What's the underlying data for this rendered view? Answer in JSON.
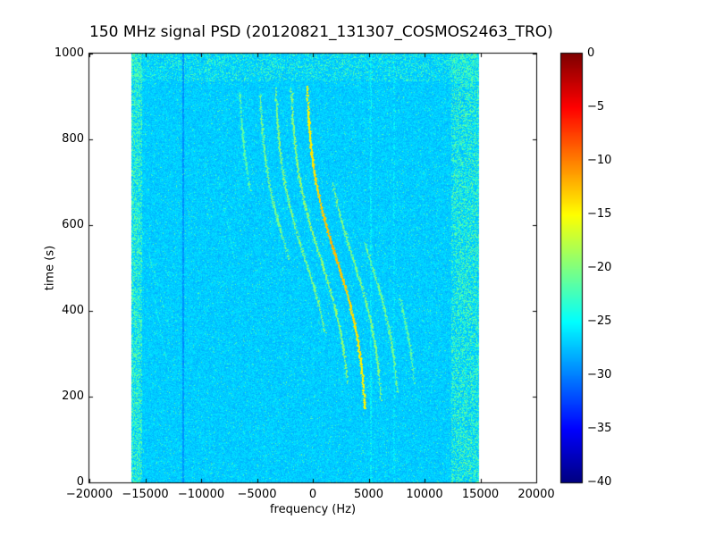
{
  "chart_data": {
    "type": "heatmap",
    "title": "150 MHz signal PSD (20120821_131307_COSMOS2463_TRO)",
    "xlabel": "frequency (Hz)",
    "ylabel": "time (s)",
    "xlim": [
      -20000,
      20000
    ],
    "ylim": [
      0,
      1000
    ],
    "xticks": [
      -20000,
      -15000,
      -10000,
      -5000,
      0,
      5000,
      10000,
      15000,
      20000
    ],
    "xtick_labels": [
      "−20000",
      "−15000",
      "−10000",
      "−5000",
      "0",
      "5000",
      "10000",
      "15000",
      "20000"
    ],
    "yticks": [
      0,
      200,
      400,
      600,
      800,
      1000
    ],
    "ytick_labels": [
      "0",
      "200",
      "400",
      "600",
      "800",
      "1000"
    ],
    "grid": false,
    "colormap": "jet",
    "legend": "none",
    "colorbar": {
      "position": "right",
      "vmin": -40,
      "vmax": 0,
      "ticks": [
        0,
        -5,
        -10,
        -15,
        -20,
        -25,
        -30,
        -35,
        -40
      ],
      "tick_labels": [
        "0",
        "−5",
        "−10",
        "−15",
        "−20",
        "−25",
        "−30",
        "−35",
        "−40"
      ]
    },
    "signal_band_hz": [
      -16200,
      14900
    ],
    "background_level_db": -27,
    "noise_spread_db": 2.4,
    "edge_speckle": {
      "left_width_hz": 900,
      "right_width_hz": 2500,
      "density_left": 0.45,
      "density_right": 0.35,
      "level_db_min": -23.2,
      "level_db_span": 3.0
    },
    "top_band": {
      "t_min_s": 935,
      "density": 0.2,
      "level_db_min": -23.5,
      "level_db_span": 2.5
    },
    "vertical_lines": [
      {
        "freq_hz": -11600,
        "level_db": -29.5,
        "width_hz": 240,
        "density": 0.9
      },
      {
        "freq_hz": 5200,
        "level_db": -24.6,
        "width_hz": 160,
        "density": 0.45
      },
      {
        "freq_hz": 7300,
        "level_db": -24.8,
        "width_hz": 130,
        "density": 0.3
      }
    ],
    "doppler_model": {
      "base_center_hz": 2100,
      "amplitude_hz": 2800,
      "t_mid_s": 520,
      "tau_s": 230
    },
    "doppler_traces": [
      {
        "offset_hz": -6000,
        "t_range_s": [
          680,
          910
        ],
        "level_db": -21.5,
        "main": false
      },
      {
        "offset_hz": -4200,
        "t_range_s": [
          520,
          910
        ],
        "level_db": -20.5,
        "main": false
      },
      {
        "offset_hz": -2800,
        "t_range_s": [
          350,
          920
        ],
        "level_db": -20.0,
        "main": false
      },
      {
        "offset_hz": -1400,
        "t_range_s": [
          230,
          920
        ],
        "level_db": -19.5,
        "main": false
      },
      {
        "offset_hz": 0,
        "t_range_s": [
          170,
          925
        ],
        "level_db": -12.3,
        "main": true
      },
      {
        "offset_hz": 1500,
        "t_range_s": [
          190,
          700
        ],
        "level_db": -20.0,
        "main": false
      },
      {
        "offset_hz": 3000,
        "t_range_s": [
          210,
          560
        ],
        "level_db": -20.5,
        "main": false
      },
      {
        "offset_hz": 4600,
        "t_range_s": [
          230,
          430
        ],
        "level_db": -21.5,
        "main": false
      }
    ],
    "faint_streaks": [
      {
        "f_start_hz": -15600,
        "t_start_s": 620,
        "f_end_hz": -12800,
        "t_end_s": 360,
        "level_db": -23.5
      },
      {
        "f_start_hz": -14200,
        "t_start_s": 430,
        "f_end_hz": -12900,
        "t_end_s": 260,
        "level_db": -24.0
      },
      {
        "f_start_hz": -8400,
        "t_start_s": 700,
        "f_end_hz": -7000,
        "t_end_s": 520,
        "level_db": -24.0
      }
    ]
  }
}
